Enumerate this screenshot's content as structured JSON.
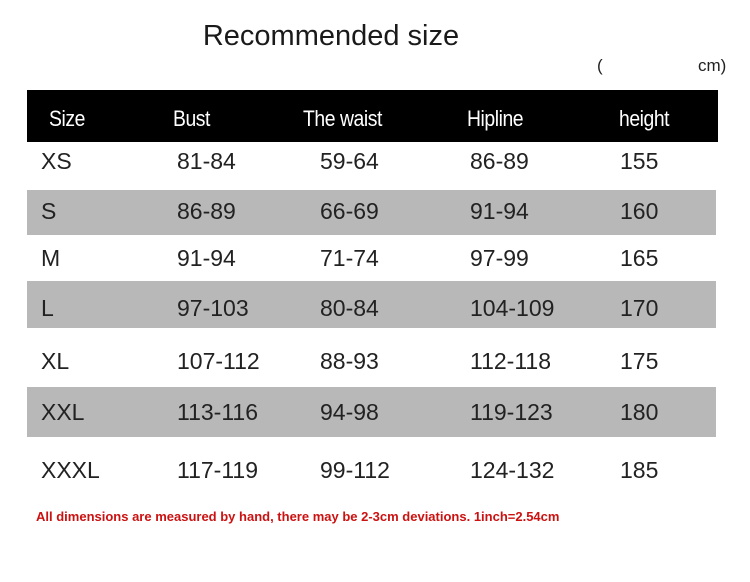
{
  "title": "Recommended size",
  "unit": {
    "open": "(",
    "label": "cm)"
  },
  "columns": [
    "Size",
    "Bust",
    "The waist",
    "Hipline",
    "height"
  ],
  "rows": [
    {
      "size": "XS",
      "bust": "81-84",
      "waist": "59-64",
      "hip": "86-89",
      "height": "155",
      "shaded": false
    },
    {
      "size": "S",
      "bust": "86-89",
      "waist": "66-69",
      "hip": "91-94",
      "height": "160",
      "shaded": true
    },
    {
      "size": "M",
      "bust": "91-94",
      "waist": "71-74",
      "hip": "97-99",
      "height": "165",
      "shaded": false
    },
    {
      "size": "L",
      "bust": "97-103",
      "waist": "80-84",
      "hip": "104-109",
      "height": "170",
      "shaded": true
    },
    {
      "size": "XL",
      "bust": "107-112",
      "waist": "88-93",
      "hip": "112-118",
      "height": "175",
      "shaded": false
    },
    {
      "size": "XXL",
      "bust": "113-116",
      "waist": "94-98",
      "hip": "119-123",
      "height": "180",
      "shaded": true
    },
    {
      "size": "XXXL",
      "bust": "117-119",
      "waist": "99-112",
      "hip": "124-132",
      "height": "185",
      "shaded": false
    }
  ],
  "note": "All dimensions are measured by hand, there may be 2-3cm deviations. 1inch=2.54cm",
  "colors": {
    "header_bg": "#000000",
    "shaded_row": "#b8b8b8",
    "note": "#cc1111"
  }
}
